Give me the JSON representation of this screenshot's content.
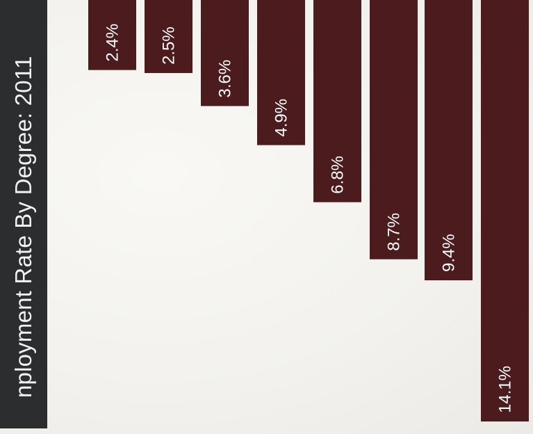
{
  "title": "nployment Rate By Degree: 2011",
  "colors": {
    "bar": "#4b1b1e",
    "title_bg": "#2b2d2e",
    "title_text": "#f2f2f2",
    "label_text": "#ffffff"
  },
  "chart_data": {
    "type": "bar",
    "title": "nployment Rate By Degree: 2011",
    "orientation": "vertical, rotated view",
    "categories": [
      "",
      "",
      "",
      "",
      "",
      "",
      "",
      ""
    ],
    "values": [
      2.4,
      2.5,
      3.6,
      4.9,
      6.8,
      8.7,
      9.4,
      14.1
    ],
    "labels": [
      "2.4%",
      "2.5%",
      "3.6%",
      "4.9%",
      "6.8%",
      "8.7%",
      "9.4%",
      "14.1%"
    ],
    "unit": "%",
    "ylim": [
      0,
      14.1
    ],
    "grid": false,
    "legend": "none"
  }
}
